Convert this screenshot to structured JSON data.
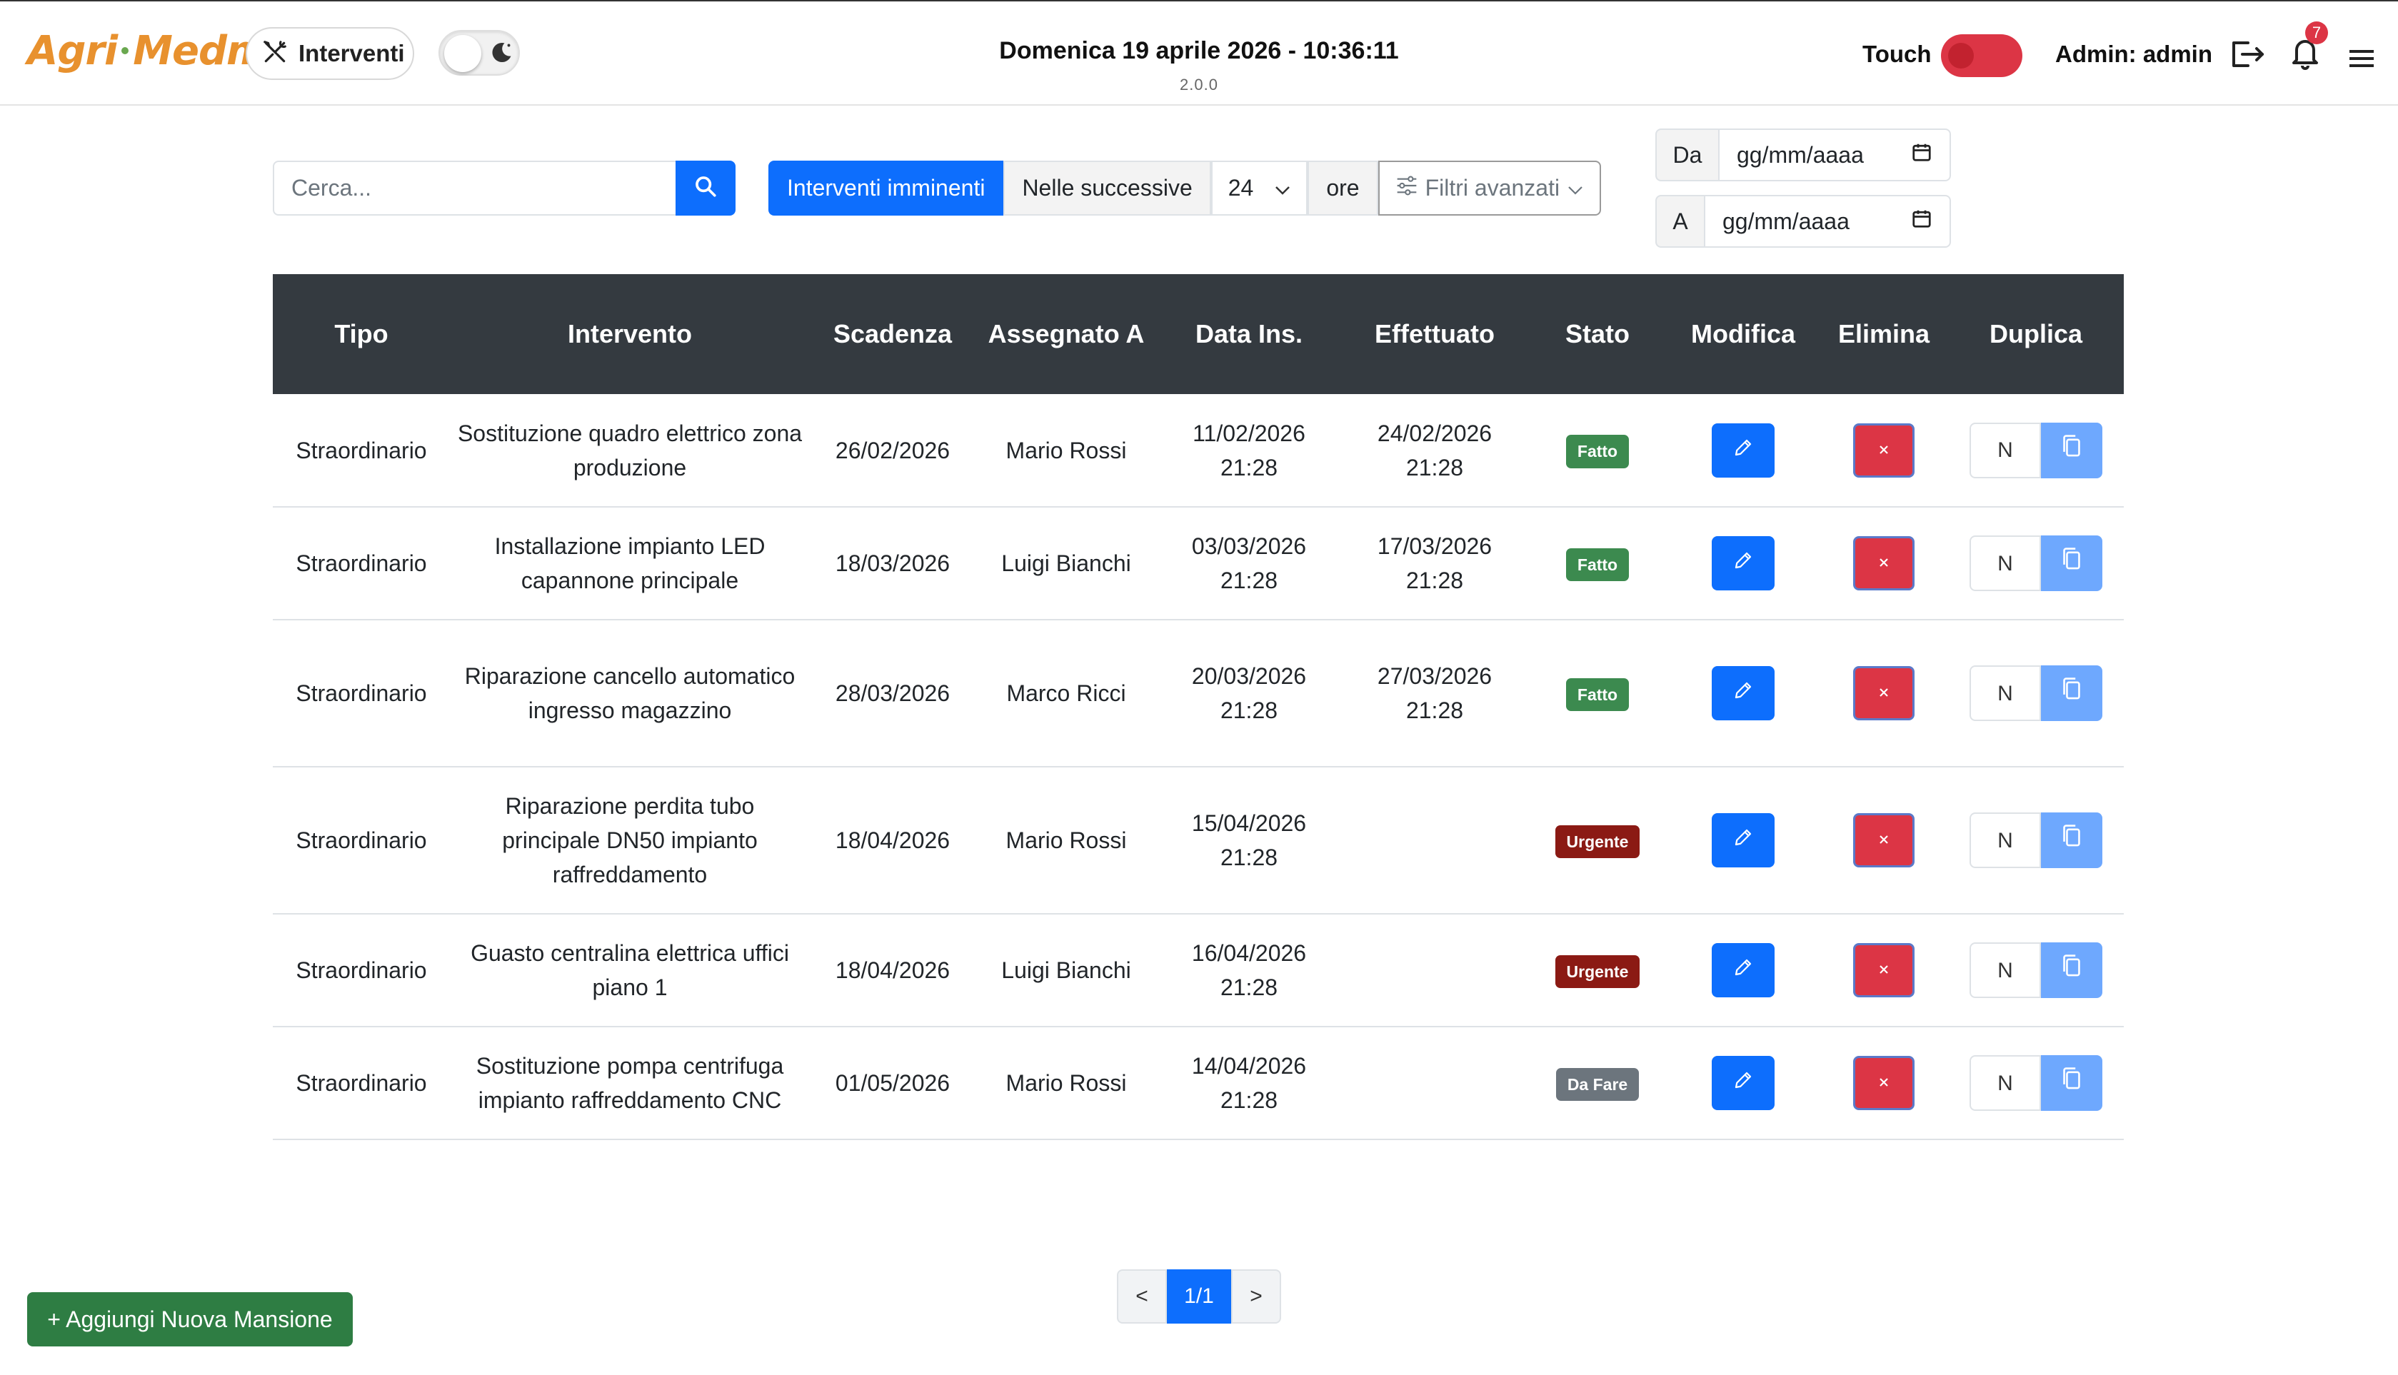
{
  "header": {
    "logo_text_a": "Agri",
    "logo_text_b": "Medma",
    "section_label": "Interventi",
    "datetime": "Domenica 19 aprile 2026 - 10:36:11",
    "version": "2.0.0",
    "touch_label": "Touch",
    "admin_label": "Admin: admin",
    "notification_count": "7"
  },
  "toolbar": {
    "search_placeholder": "Cerca...",
    "filter_active": "Interventi imminenti",
    "filter_next": "Nelle successive",
    "hours_value": "24",
    "hours_unit": "ore",
    "advanced_filters": "Filtri avanzati",
    "from_label": "Da",
    "from_value": "gg/mm/aaaa",
    "to_label": "A",
    "to_value": "gg/mm/aaaa"
  },
  "table": {
    "headers": [
      "Tipo",
      "Intervento",
      "Scadenza",
      "Assegnato A",
      "Data Ins.",
      "Effettuato",
      "Stato",
      "Modifica",
      "Elimina",
      "Duplica"
    ],
    "rows": [
      {
        "tipo": "Straordinario",
        "intervento": "Sostituzione quadro elettrico zona produzione",
        "scadenza": "26/02/2026",
        "assegnato": "Mario Rossi",
        "data_ins": "11/02/2026 21:28",
        "effettuato": "24/02/2026 21:28",
        "stato": "Fatto",
        "dup_n": "N"
      },
      {
        "tipo": "Straordinario",
        "intervento": "Installazione impianto LED capannone principale",
        "scadenza": "18/03/2026",
        "assegnato": "Luigi Bianchi",
        "data_ins": "03/03/2026 21:28",
        "effettuato": "17/03/2026 21:28",
        "stato": "Fatto",
        "dup_n": "N"
      },
      {
        "tipo": "Straordinario",
        "intervento": "Riparazione cancello automatico ingresso magazzino",
        "scadenza": "28/03/2026",
        "assegnato": "Marco Ricci",
        "data_ins": "20/03/2026 21:28",
        "effettuato": "27/03/2026 21:28",
        "stato": "Fatto",
        "dup_n": "N"
      },
      {
        "tipo": "Straordinario",
        "intervento": "Riparazione perdita tubo principale DN50 impianto raffreddamento",
        "scadenza": "18/04/2026",
        "assegnato": "Mario Rossi",
        "data_ins": "15/04/2026 21:28",
        "effettuato": "",
        "stato": "Urgente",
        "dup_n": "N"
      },
      {
        "tipo": "Straordinario",
        "intervento": "Guasto centralina elettrica uffici piano 1",
        "scadenza": "18/04/2026",
        "assegnato": "Luigi Bianchi",
        "data_ins": "16/04/2026 21:28",
        "effettuato": "",
        "stato": "Urgente",
        "dup_n": "N"
      },
      {
        "tipo": "Straordinario",
        "intervento": "Sostituzione pompa centrifuga impianto raffreddamento CNC",
        "scadenza": "01/05/2026",
        "assegnato": "Mario Rossi",
        "data_ins": "14/04/2026 21:28",
        "effettuato": "",
        "stato": "Da Fare",
        "dup_n": "N"
      }
    ]
  },
  "footer": {
    "add_button": "+ Aggiungi Nuova Mansione",
    "prev": "<",
    "page": "1/1",
    "next": ">"
  },
  "colors": {
    "primary": "#0d6efd",
    "danger": "#dc3545",
    "success_badge": "#3c8a4f",
    "urgent_badge": "#8b1a14",
    "todo_badge": "#6c757d",
    "header_dark": "#343a40",
    "logo_orange": "#e8912e",
    "add_green": "#2e7d43"
  }
}
